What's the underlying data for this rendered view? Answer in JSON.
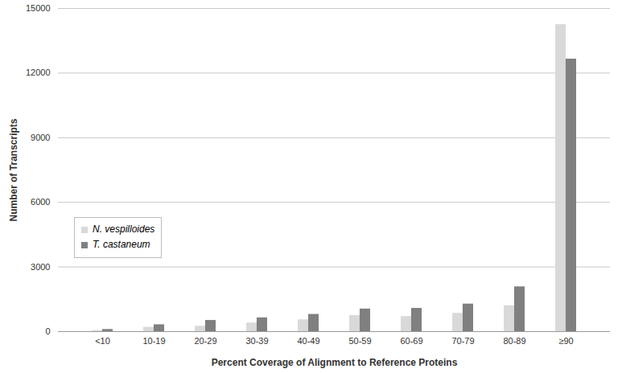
{
  "chart_data": {
    "type": "bar",
    "x_label": "Percent Coverage of Alignment to Reference Proteins",
    "y_label": "Number of Transcripts",
    "categories": [
      "<10",
      "10-19",
      "20-29",
      "30-39",
      "40-49",
      "50-59",
      "60-69",
      "70-79",
      "80-89",
      "≥90"
    ],
    "series": [
      {
        "name": "N. vespilloides",
        "color": "#d9d9d9",
        "values": [
          50,
          200,
          250,
          400,
          550,
          750,
          700,
          850,
          1200,
          14250
        ]
      },
      {
        "name": "T. castaneum",
        "color": "#808080",
        "values": [
          100,
          320,
          520,
          640,
          800,
          1050,
          1080,
          1280,
          2080,
          12650
        ]
      }
    ],
    "ylim": [
      0,
      15000
    ],
    "yticks": [
      0,
      3000,
      6000,
      9000,
      12000,
      15000
    ],
    "grid": true,
    "legend": "left"
  }
}
